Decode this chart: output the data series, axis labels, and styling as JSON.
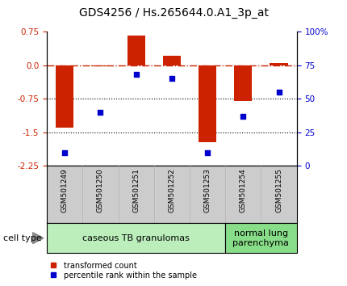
{
  "title": "GDS4256 / Hs.265644.0.A1_3p_at",
  "samples": [
    "GSM501249",
    "GSM501250",
    "GSM501251",
    "GSM501252",
    "GSM501253",
    "GSM501254",
    "GSM501255"
  ],
  "transformed_count": [
    -1.4,
    -0.02,
    0.65,
    0.2,
    -1.72,
    -0.8,
    0.05
  ],
  "percentile_rank": [
    10,
    40,
    68,
    65,
    10,
    37,
    55
  ],
  "ylim_left": [
    -2.25,
    0.75
  ],
  "ylim_right": [
    0,
    100
  ],
  "yticks_left": [
    0.75,
    0.0,
    -0.75,
    -1.5,
    -2.25
  ],
  "yticks_right": [
    100,
    75,
    50,
    25,
    0
  ],
  "ytick_labels_right": [
    "100%",
    "75",
    "50",
    "25",
    "0"
  ],
  "hlines": [
    0.0,
    -0.75,
    -1.5
  ],
  "hline_styles": [
    "dashdot",
    "dotted",
    "dotted"
  ],
  "bar_color": "#cc2200",
  "dot_color": "#0000cc",
  "bar_width": 0.5,
  "groups": [
    {
      "label": "caseous TB granulomas",
      "samples": [
        0,
        1,
        2,
        3,
        4
      ],
      "color": "#bbeebb"
    },
    {
      "label": "normal lung\nparenchyma",
      "samples": [
        5,
        6
      ],
      "color": "#88dd88"
    }
  ],
  "cell_type_label": "cell type",
  "legend_items": [
    {
      "label": "transformed count",
      "color": "#cc2200"
    },
    {
      "label": "percentile rank within the sample",
      "color": "#0000cc"
    }
  ],
  "title_fontsize": 10,
  "tick_fontsize": 7.5,
  "sample_fontsize": 6.5,
  "group_label_fontsize": 8,
  "legend_fontsize": 7,
  "cell_type_fontsize": 8
}
